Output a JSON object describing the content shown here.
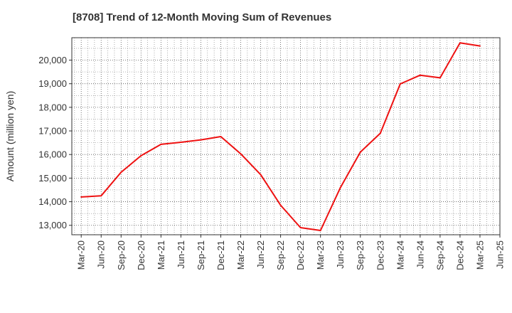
{
  "chart_data": {
    "type": "line",
    "title": "[8708]  Trend of 12-Month Moving Sum of Revenues",
    "xlabel": "",
    "ylabel": "Amount (million yen)",
    "x_ticks": [
      "Mar-20",
      "Jun-20",
      "Sep-20",
      "Dec-20",
      "Mar-21",
      "Jun-21",
      "Sep-21",
      "Dec-21",
      "Mar-22",
      "Jun-22",
      "Sep-22",
      "Dec-22",
      "Mar-23",
      "Jun-23",
      "Sep-23",
      "Dec-23",
      "Mar-24",
      "Jun-24",
      "Sep-24",
      "Dec-24",
      "Mar-25",
      "Jun-25"
    ],
    "y_ticks": [
      13000,
      14000,
      15000,
      16000,
      17000,
      18000,
      19000,
      20000
    ],
    "y_tick_labels": [
      "13,000",
      "14,000",
      "15,000",
      "16,000",
      "17,000",
      "18,000",
      "19,000",
      "20,000"
    ],
    "ylim": [
      12600,
      20950
    ],
    "grid": true,
    "series": [
      {
        "color": "#ee1111",
        "x": [
          "Mar-20",
          "Jun-20",
          "Sep-20",
          "Dec-20",
          "Mar-21",
          "Jun-21",
          "Sep-21",
          "Dec-21",
          "Mar-22",
          "Jun-22",
          "Sep-22",
          "Dec-22",
          "Mar-23",
          "Jun-23",
          "Sep-23",
          "Dec-23",
          "Mar-24",
          "Jun-24",
          "Sep-24",
          "Dec-24",
          "Mar-25"
        ],
        "values": [
          14200,
          14250,
          15250,
          15950,
          16430,
          16520,
          16620,
          16760,
          16030,
          15150,
          13850,
          12900,
          12780,
          14600,
          16100,
          16900,
          18990,
          19360,
          19250,
          20730,
          20600
        ]
      }
    ]
  }
}
